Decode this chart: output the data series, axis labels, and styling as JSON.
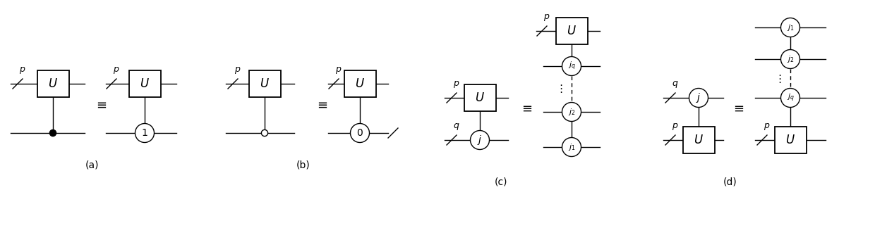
{
  "figure_width": 12.4,
  "figure_height": 3.24,
  "dpi": 100,
  "bg_color": "#ffffff",
  "line_color": "#000000",
  "label_a": "(a)",
  "label_b": "(b)",
  "label_c": "(c)",
  "label_d": "(d)"
}
